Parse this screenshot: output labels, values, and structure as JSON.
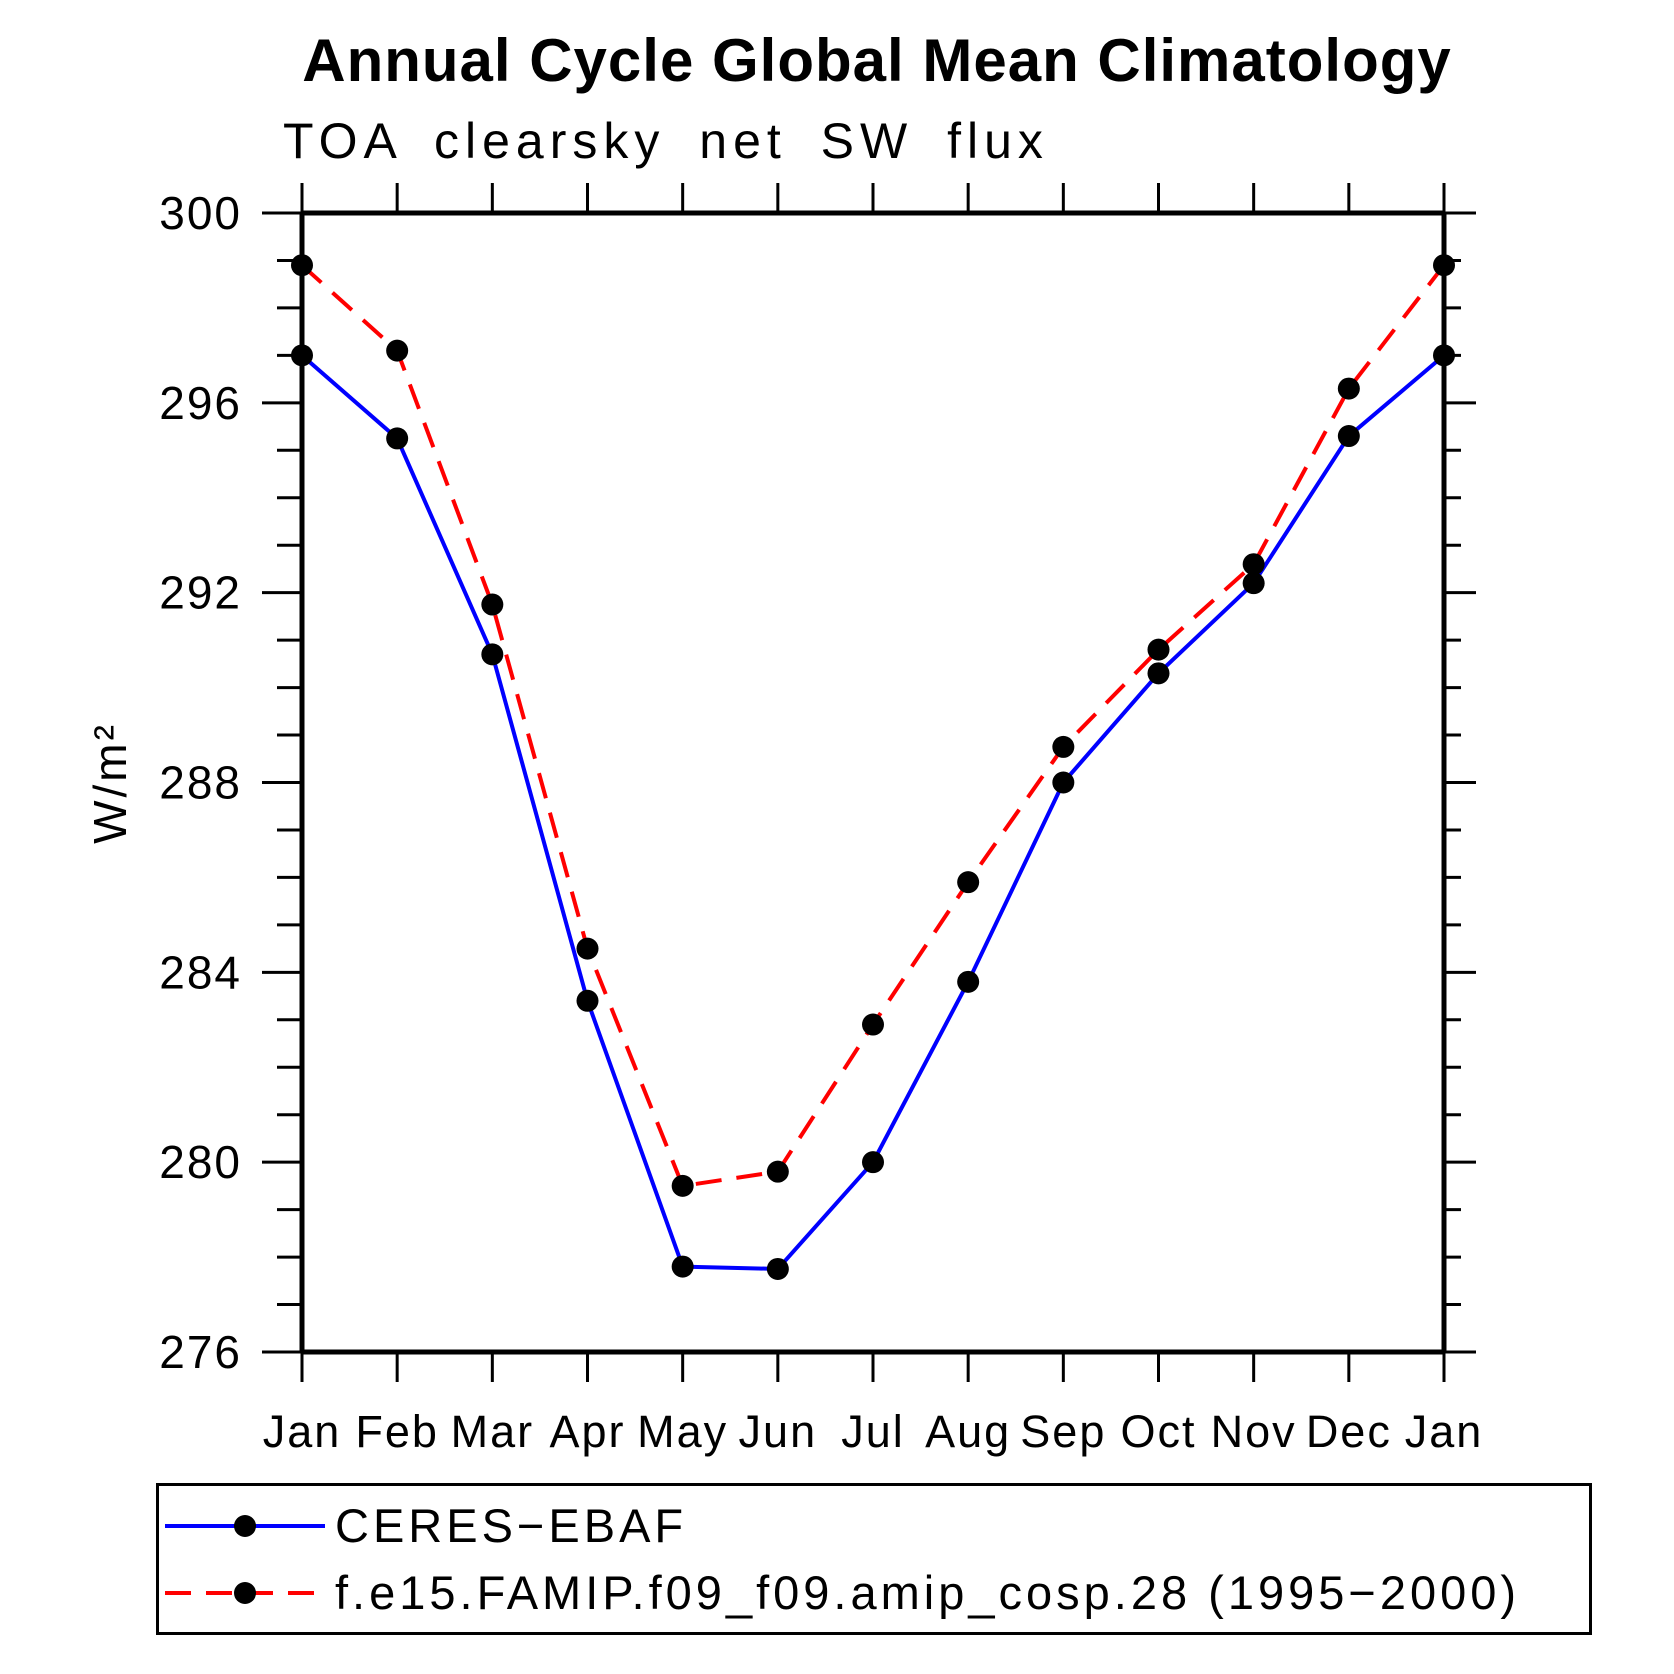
{
  "header": {
    "title": "Annual Cycle Global Mean Climatology",
    "subtitle": "TOA clearsky net SW flux"
  },
  "chart_data": {
    "type": "line",
    "title": "Annual Cycle Global Mean Climatology",
    "subtitle": "TOA clearsky net SW flux",
    "categories": [
      "Jan",
      "Feb",
      "Mar",
      "Apr",
      "May",
      "Jun",
      "Jul",
      "Aug",
      "Sep",
      "Oct",
      "Nov",
      "Dec",
      "Jan"
    ],
    "series": [
      {
        "name": "CERES−EBAF",
        "color": "#0000ff",
        "style": "solid",
        "marker": "filled-circle",
        "marker_color": "#000000",
        "values": [
          297.0,
          295.25,
          290.7,
          283.4,
          277.8,
          277.75,
          280.0,
          283.8,
          288.0,
          290.3,
          292.2,
          295.3,
          297.0
        ]
      },
      {
        "name": "f.e15.FAMIP.f09_f09.amip_cosp.28 (1995−2000)",
        "color": "#ff0000",
        "style": "dashed",
        "marker": "filled-circle",
        "marker_color": "#000000",
        "values": [
          298.9,
          297.1,
          291.75,
          284.5,
          279.5,
          279.8,
          282.9,
          285.9,
          288.75,
          290.8,
          292.6,
          296.3,
          298.9
        ]
      }
    ],
    "xlabel": "",
    "ylabel": "W/m²",
    "ylim": [
      276,
      300
    ],
    "ytick_major": 4,
    "ytick_minor": 1,
    "grid": false,
    "legend_position": "bottom"
  },
  "colors": {
    "axis": "#000000",
    "background": "#ffffff",
    "obs_line": "#0000ff",
    "model_line": "#ff0000",
    "marker": "#000000"
  }
}
